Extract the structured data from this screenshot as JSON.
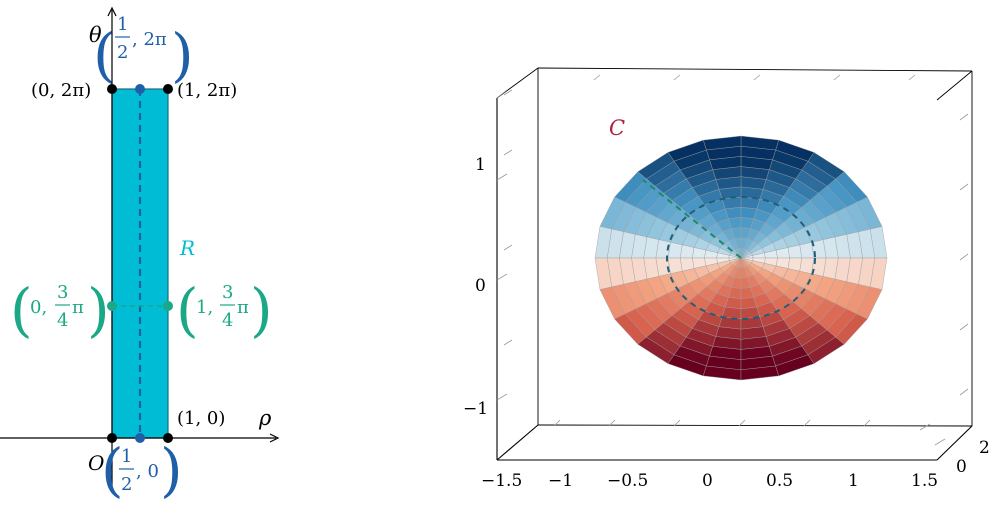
{
  "left_panel": {
    "axis_theta": "θ",
    "axis_rho": "ρ",
    "origin": "O",
    "region": "R",
    "corner_top_left": "(0, 2π)",
    "corner_top_right": "(1, 2π)",
    "corner_bottom_right": "(1, 0)",
    "mid_top": {
      "paren_l": "(",
      "num": "1",
      "den": "2",
      "rest": ", 2π",
      "paren_r": ")"
    },
    "mid_bottom": {
      "paren_l": "(",
      "num": "1",
      "den": "2",
      "rest": ", 0",
      "paren_r": ")"
    },
    "side_left": {
      "paren_l": "(",
      "prefix": "0, ",
      "num": "3",
      "den": "4",
      "suffix": "π",
      "paren_r": ")"
    },
    "side_right": {
      "paren_l": "(",
      "prefix": "1, ",
      "num": "3",
      "den": "4",
      "suffix": "π",
      "paren_r": ")"
    },
    "colors": {
      "region_fill": "#00bcd4",
      "region_stroke": "#1a6b80",
      "mid_line": "#1f5fa8",
      "side_line": "#1aa886",
      "label_mid": "#1f5fa8",
      "label_side": "#1aa886",
      "label_region": "#00bcd4"
    }
  },
  "right_panel": {
    "surface_label": "C",
    "surface_label_color": "#b0203a",
    "x_ticks": [
      "−1.5",
      "−1",
      "−0.5",
      "0",
      "0.5",
      "1",
      "1.5"
    ],
    "y_ticks": [
      "0",
      "2"
    ],
    "z_ticks": [
      "1",
      "0",
      "−1"
    ],
    "colormap": "RdBu (red bottom, blue top)",
    "dashed_circle_color": "#1f5f7a",
    "dashed_radius_color": "#1a8a6a"
  }
}
